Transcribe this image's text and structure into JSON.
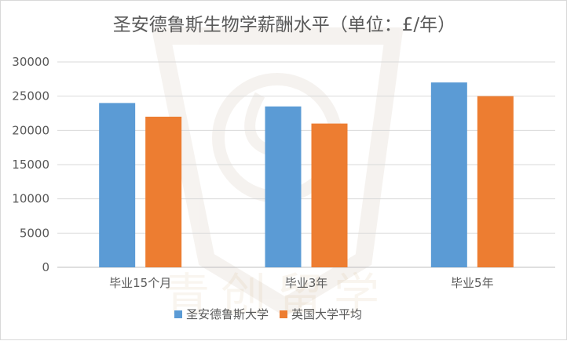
{
  "chart_data": {
    "type": "bar",
    "title": "圣安德鲁斯生物学薪酬水平（单位：£/年）",
    "categories": [
      "毕业15个月",
      "毕业3年",
      "毕业5年"
    ],
    "series": [
      {
        "name": "圣安德鲁斯大学",
        "color": "#5b9bd5",
        "values": [
          24000,
          23500,
          27000
        ]
      },
      {
        "name": "英国大学平均",
        "color": "#ed7d31",
        "values": [
          22000,
          21000,
          25000
        ]
      }
    ],
    "yticks": [
      0,
      5000,
      10000,
      15000,
      20000,
      25000,
      30000
    ],
    "ylim": [
      0,
      30000
    ],
    "grid": true,
    "legend_position": "bottom",
    "watermark": "青创留学"
  }
}
